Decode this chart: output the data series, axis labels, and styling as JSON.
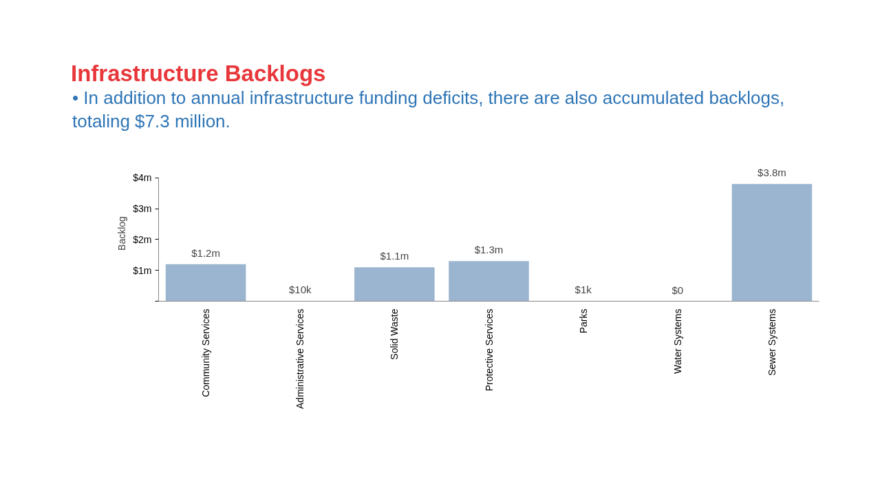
{
  "chart_data": {
    "type": "bar",
    "title": "Infrastructure Backlogs",
    "subtitle": "• In addition to annual infrastructure funding deficits, there are also accumulated backlogs, totaling $7.3 million.",
    "ylabel": "Backlog",
    "categories": [
      "Community Services",
      "Administrative Services",
      "Solid Waste",
      "Protective Services",
      "Parks",
      "Water Systems",
      "Sewer Systems"
    ],
    "values": [
      1200000,
      10000,
      1100000,
      1300000,
      1000,
      0,
      3800000
    ],
    "value_labels": [
      "$1.2m",
      "$10k",
      "$1.1m",
      "$1.3m",
      "$1k",
      "$0",
      "$3.8m"
    ],
    "color": "#9bb5d0",
    "ylim": [
      0,
      4000000
    ],
    "yticks": [
      {
        "value": 0,
        "label": null
      },
      {
        "value": 1000000,
        "label": "$1m"
      },
      {
        "value": 2000000,
        "label": "$2m"
      },
      {
        "value": 3000000,
        "label": "$3m"
      },
      {
        "value": 4000000,
        "label": "$4m"
      }
    ],
    "grid": false
  }
}
